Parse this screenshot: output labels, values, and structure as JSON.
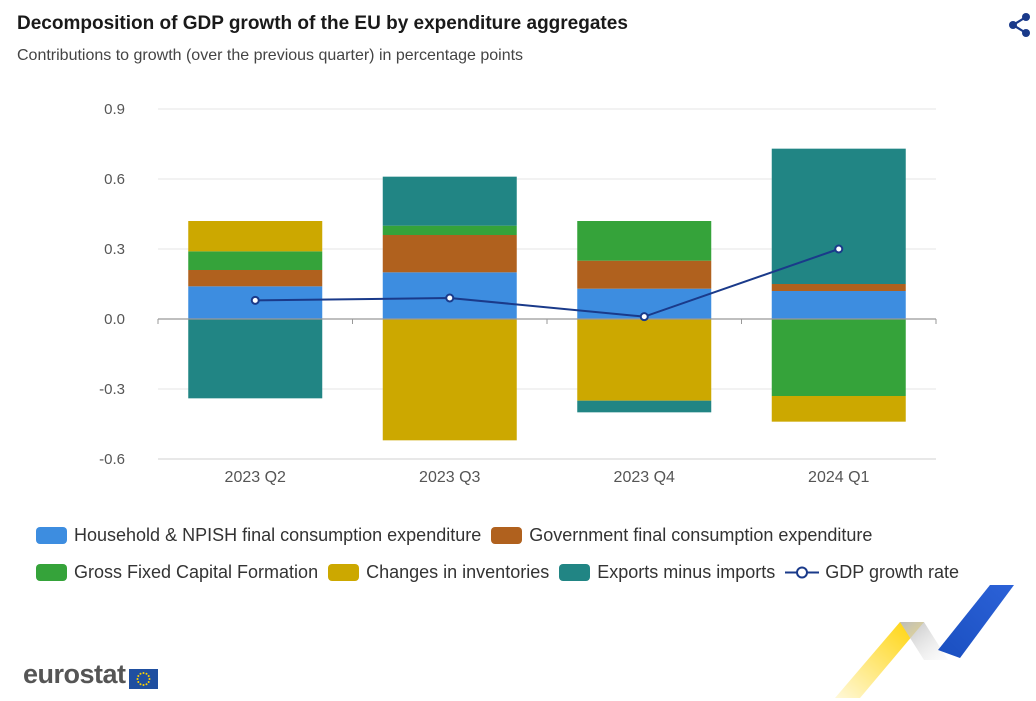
{
  "header": {
    "title": "Decomposition of GDP growth of the EU by expenditure aggregates",
    "subtitle": "Contributions to growth (over the previous quarter) in percentage points",
    "share_icon": "share-icon"
  },
  "brand": {
    "name": "eurostat",
    "flag_icon": "eu-flag-icon"
  },
  "colors": {
    "household": "#3d8de0",
    "government": "#b0611e",
    "gfcf": "#35a33a",
    "inventories": "#cca800",
    "exports": "#218584",
    "gdp_line": "#1a3a8a",
    "grid": "#e6e6e6",
    "axis": "#999999"
  },
  "chart_data": {
    "type": "bar",
    "stacked": true,
    "title": "Decomposition of GDP growth of the EU by expenditure aggregates",
    "subtitle": "Contributions to growth (over the previous quarter) in percentage points",
    "categories": [
      "2023 Q2",
      "2023 Q3",
      "2023 Q4",
      "2024 Q1"
    ],
    "ylim": [
      -0.6,
      0.9
    ],
    "yticks": [
      0.9,
      0.6,
      0.3,
      0.0,
      -0.3,
      -0.6
    ],
    "ytick_labels": [
      "0.9",
      "0.6",
      "0.3",
      "0.0",
      "-0.3",
      "-0.6"
    ],
    "series": [
      {
        "name": "Household & NPISH final consumption expenditure",
        "key": "household",
        "values": [
          0.14,
          0.2,
          0.13,
          0.12
        ]
      },
      {
        "name": "Government final consumption expenditure",
        "key": "government",
        "values": [
          0.07,
          0.16,
          0.12,
          0.03
        ]
      },
      {
        "name": "Gross Fixed Capital Formation",
        "key": "gfcf",
        "values": [
          0.08,
          0.04,
          0.17,
          -0.33
        ]
      },
      {
        "name": "Changes in inventories",
        "key": "inventories",
        "values": [
          0.13,
          -0.52,
          -0.35,
          -0.11
        ]
      },
      {
        "name": "Exports minus imports",
        "key": "exports",
        "values": [
          -0.34,
          0.21,
          -0.05,
          0.58
        ]
      }
    ],
    "line": {
      "name": "GDP growth rate",
      "key": "gdp_line",
      "values": [
        0.08,
        0.09,
        0.01,
        0.3
      ]
    },
    "legend": {
      "position": "bottom",
      "rows": [
        [
          "Household & NPISH final consumption expenditure",
          "Government final consumption expenditure"
        ],
        [
          "Gross Fixed Capital Formation",
          "Changes in inventories",
          "Exports minus imports",
          "GDP growth rate"
        ]
      ]
    }
  }
}
